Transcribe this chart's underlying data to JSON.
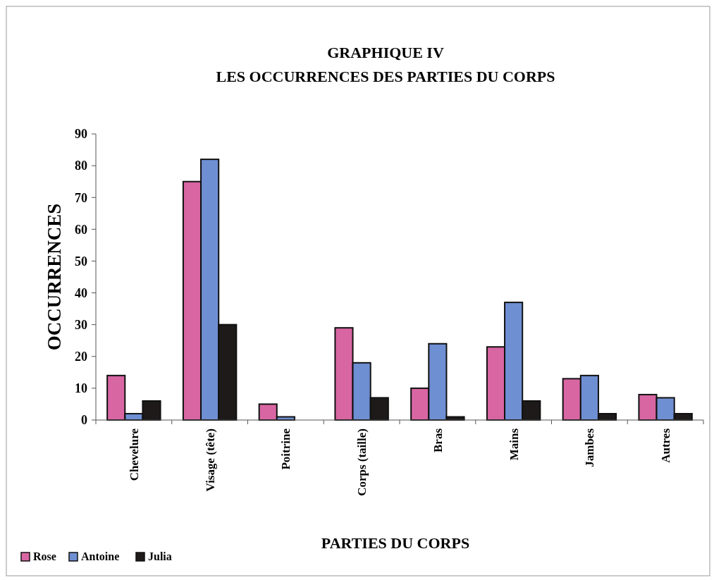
{
  "chart_data": {
    "type": "bar",
    "title": "GRAPHIQUE IV",
    "subtitle": "LES OCCURRENCES DES PARTIES DU CORPS",
    "xlabel": "PARTIES DU CORPS",
    "ylabel": "OCCURRENCES",
    "categories": [
      "Chevelure",
      "Visage (tête)",
      "Poitrine",
      "Corps (taille)",
      "Bras",
      "Mains",
      "Jambes",
      "Autres"
    ],
    "series": [
      {
        "name": "Rose",
        "color": "#d866a3",
        "values": [
          14,
          75,
          5,
          29,
          10,
          23,
          13,
          8
        ]
      },
      {
        "name": "Antoine",
        "color": "#6f8fd3",
        "values": [
          2,
          82,
          1,
          18,
          24,
          37,
          14,
          7
        ]
      },
      {
        "name": "Julia",
        "color": "#1e1a1a",
        "values": [
          6,
          30,
          0,
          7,
          1,
          6,
          2,
          2
        ]
      }
    ],
    "ylim": [
      0,
      90
    ],
    "yticks": [
      0,
      10,
      20,
      30,
      40,
      50,
      60,
      70,
      80,
      90
    ],
    "grid": false,
    "legend": "bottom left"
  }
}
